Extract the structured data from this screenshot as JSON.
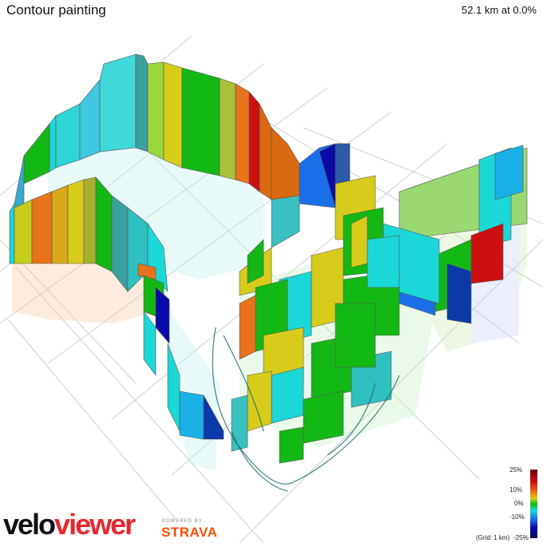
{
  "header": {
    "title": "Contour painting",
    "summary": "52.1 km at 0.0%"
  },
  "legend": {
    "labels": [
      "25%",
      "10%",
      "0%",
      "-10%",
      "-25%"
    ],
    "grid_note": "(Grid: 1 km)",
    "colors": [
      "#8b0000",
      "#cc1010",
      "#e8731a",
      "#d8cc1a",
      "#14b814",
      "#1ad8d8",
      "#1a6ee8",
      "#0a0aa8",
      "#0a0a5a"
    ]
  },
  "branding": {
    "logo_part1": "velo",
    "logo_part2": "viewer",
    "powered_by": "POWERED BY",
    "partner": "STRAVA",
    "accent": "#e5282f",
    "strava_color": "#fc4c02"
  }
}
